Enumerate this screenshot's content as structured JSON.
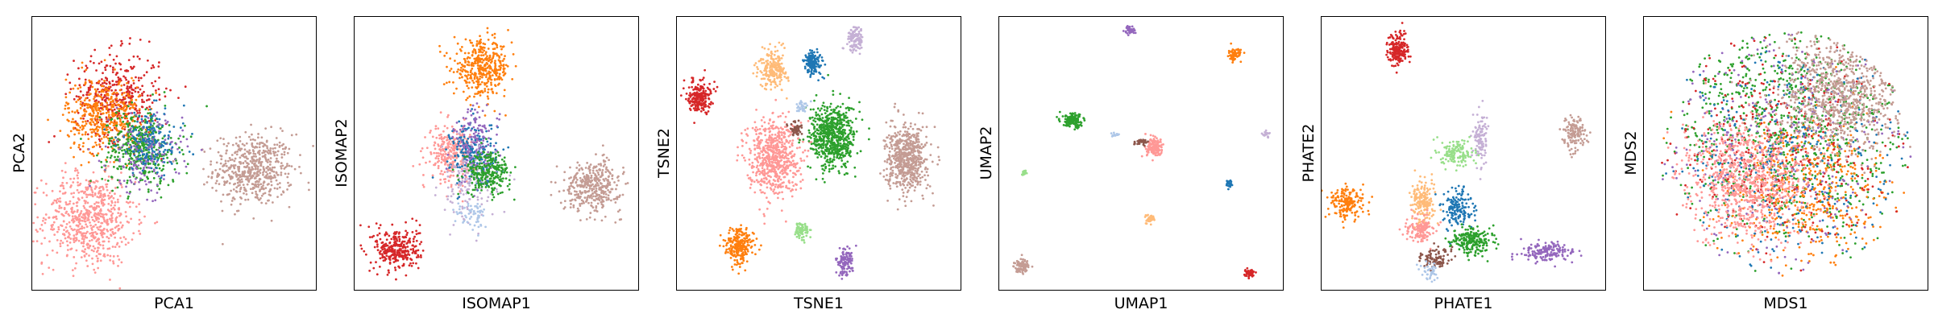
{
  "palette": {
    "c0": "#1f77b4",
    "c1": "#ff7f0e",
    "c2": "#2ca02c",
    "c3": "#d62728",
    "c4": "#9467bd",
    "c5": "#8c564b",
    "c6": "#ff9896",
    "c7": "#ffbb78",
    "c8": "#98df8a",
    "c9": "#c5b0d5",
    "c10": "#c49c94",
    "c11": "#aec7e8"
  },
  "chart_data": [
    {
      "type": "scatter",
      "xlabel": "PCA1",
      "ylabel": "PCA2",
      "ticks": "none",
      "xlim": [
        0,
        100
      ],
      "ylim": [
        0,
        100
      ],
      "clusters": [
        {
          "color": "c10",
          "cx": 78,
          "cy": 44,
          "sx": 7,
          "sy": 6.5,
          "n": 550
        },
        {
          "color": "c6",
          "cx": 20,
          "cy": 26,
          "sx": 8,
          "sy": 8.5,
          "n": 650
        },
        {
          "color": "c3",
          "cx": 30,
          "cy": 71,
          "sx": 7.5,
          "sy": 8,
          "n": 400
        },
        {
          "color": "c1",
          "cx": 25,
          "cy": 64,
          "sx": 6.5,
          "sy": 7,
          "n": 420
        },
        {
          "color": "c2",
          "cx": 38,
          "cy": 52,
          "sx": 6.5,
          "sy": 7,
          "n": 420
        },
        {
          "color": "c4",
          "cx": 40,
          "cy": 50,
          "sx": 6.5,
          "sy": 7,
          "n": 180
        },
        {
          "color": "c0",
          "cx": 42,
          "cy": 54,
          "sx": 6,
          "sy": 6,
          "n": 150
        }
      ]
    },
    {
      "type": "scatter",
      "xlabel": "ISOMAP1",
      "ylabel": "ISOMAP2",
      "ticks": "none",
      "xlim": [
        0,
        100
      ],
      "ylim": [
        0,
        100
      ],
      "clusters": [
        {
          "color": "c1",
          "cx": 45,
          "cy": 81,
          "sx": 5,
          "sy": 5,
          "n": 400
        },
        {
          "color": "c6",
          "cx": 34,
          "cy": 50,
          "sx": 4,
          "sy": 5,
          "n": 300
        },
        {
          "color": "c0",
          "cx": 42,
          "cy": 50,
          "sx": 4,
          "sy": 6,
          "n": 220
        },
        {
          "color": "c4",
          "cx": 43,
          "cy": 53,
          "sx": 4,
          "sy": 7,
          "n": 160
        },
        {
          "color": "c9",
          "cx": 40,
          "cy": 38,
          "sx": 5,
          "sy": 7,
          "n": 140
        },
        {
          "color": "c2",
          "cx": 47,
          "cy": 43,
          "sx": 4,
          "sy": 4,
          "n": 260
        },
        {
          "color": "c10",
          "cx": 84,
          "cy": 38,
          "sx": 5,
          "sy": 4.5,
          "n": 380
        },
        {
          "color": "c3",
          "cx": 15,
          "cy": 15,
          "sx": 4,
          "sy": 4,
          "n": 300
        },
        {
          "color": "c11",
          "cx": 42,
          "cy": 27,
          "sx": 3,
          "sy": 3,
          "n": 60
        }
      ]
    },
    {
      "type": "scatter",
      "xlabel": "TSNE1",
      "ylabel": "TSNE2",
      "ticks": "none",
      "xlim": [
        0,
        100
      ],
      "ylim": [
        0,
        100
      ],
      "clusters": [
        {
          "color": "c6",
          "cx": 34,
          "cy": 49,
          "sx": 4.5,
          "sy": 7,
          "n": 650
        },
        {
          "color": "c2",
          "cx": 55,
          "cy": 56,
          "sx": 4,
          "sy": 6,
          "n": 650
        },
        {
          "color": "c10",
          "cx": 81,
          "cy": 48,
          "sx": 3.5,
          "sy": 6,
          "n": 600
        },
        {
          "color": "c3",
          "cx": 8,
          "cy": 71,
          "sx": 2,
          "sy": 3,
          "n": 220
        },
        {
          "color": "c7",
          "cx": 34,
          "cy": 81,
          "sx": 2.5,
          "sy": 3.5,
          "n": 220
        },
        {
          "color": "c0",
          "cx": 48,
          "cy": 83,
          "sx": 1.6,
          "sy": 2.2,
          "n": 160
        },
        {
          "color": "c9",
          "cx": 63,
          "cy": 92,
          "sx": 1.4,
          "sy": 2.2,
          "n": 120
        },
        {
          "color": "c1",
          "cx": 22,
          "cy": 16,
          "sx": 2.5,
          "sy": 3.5,
          "n": 240
        },
        {
          "color": "c8",
          "cx": 44,
          "cy": 22,
          "sx": 1.2,
          "sy": 1.6,
          "n": 80
        },
        {
          "color": "c4",
          "cx": 59,
          "cy": 10,
          "sx": 1.5,
          "sy": 2.5,
          "n": 120
        },
        {
          "color": "c5",
          "cx": 42,
          "cy": 59,
          "sx": 1.2,
          "sy": 1.2,
          "n": 50
        },
        {
          "color": "c11",
          "cx": 44,
          "cy": 67,
          "sx": 1,
          "sy": 1.2,
          "n": 30
        }
      ]
    },
    {
      "type": "scatter",
      "xlabel": "UMAP1",
      "ylabel": "UMAP2",
      "ticks": "none",
      "xlim": [
        0,
        100
      ],
      "ylim": [
        0,
        100
      ],
      "clusters": [
        {
          "color": "c4",
          "cx": 46,
          "cy": 95,
          "sx": 1,
          "sy": 0.8,
          "n": 40
        },
        {
          "color": "c1",
          "cx": 83,
          "cy": 86,
          "sx": 1.1,
          "sy": 1.1,
          "n": 70
        },
        {
          "color": "c2",
          "cx": 26,
          "cy": 62,
          "sx": 1.8,
          "sy": 1.3,
          "n": 140
        },
        {
          "color": "c6",
          "cx": 55,
          "cy": 52,
          "sx": 1.6,
          "sy": 1.6,
          "n": 140
        },
        {
          "color": "c5",
          "cx": 50,
          "cy": 54,
          "sx": 1.2,
          "sy": 0.5,
          "n": 40
        },
        {
          "color": "c11",
          "cx": 41,
          "cy": 57,
          "sx": 0.6,
          "sy": 0.4,
          "n": 15
        },
        {
          "color": "c9",
          "cx": 94,
          "cy": 57,
          "sx": 0.7,
          "sy": 0.5,
          "n": 20
        },
        {
          "color": "c8",
          "cx": 9,
          "cy": 43,
          "sx": 0.5,
          "sy": 0.6,
          "n": 15
        },
        {
          "color": "c0",
          "cx": 81,
          "cy": 39,
          "sx": 0.6,
          "sy": 0.7,
          "n": 25
        },
        {
          "color": "c7",
          "cx": 53,
          "cy": 26,
          "sx": 0.9,
          "sy": 0.9,
          "n": 40
        },
        {
          "color": "c10",
          "cx": 8,
          "cy": 9,
          "sx": 1.4,
          "sy": 1.2,
          "n": 90
        },
        {
          "color": "c3",
          "cx": 88,
          "cy": 6,
          "sx": 0.9,
          "sy": 0.8,
          "n": 40
        }
      ]
    },
    {
      "type": "scatter",
      "xlabel": "PHATE1",
      "ylabel": "PHATE2",
      "ticks": "none",
      "xlim": [
        0,
        100
      ],
      "ylim": [
        0,
        100
      ],
      "clusters": [
        {
          "color": "c3",
          "cx": 27,
          "cy": 88,
          "sx": 1.8,
          "sy": 3,
          "n": 200
        },
        {
          "color": "c10",
          "cx": 89,
          "cy": 57,
          "sx": 2,
          "sy": 3,
          "n": 140
        },
        {
          "color": "c9",
          "cx": 56,
          "cy": 56,
          "sx": 1.2,
          "sy": 5,
          "n": 110
        },
        {
          "color": "c8",
          "cx": 48,
          "cy": 50,
          "sx": 3,
          "sy": 2.5,
          "n": 140
        },
        {
          "color": "c1",
          "cx": 9,
          "cy": 32,
          "sx": 3,
          "sy": 3,
          "n": 180
        },
        {
          "color": "c7",
          "cx": 36,
          "cy": 32,
          "sx": 2,
          "sy": 4,
          "n": 180
        },
        {
          "color": "c0",
          "cx": 48,
          "cy": 30,
          "sx": 2.5,
          "sy": 3.5,
          "n": 160
        },
        {
          "color": "c6",
          "cx": 35,
          "cy": 22,
          "sx": 2.5,
          "sy": 2.5,
          "n": 130
        },
        {
          "color": "c2",
          "cx": 53,
          "cy": 18,
          "sx": 3.5,
          "sy": 2.5,
          "n": 220
        },
        {
          "color": "c4",
          "cx": 80,
          "cy": 14,
          "sx": 5,
          "sy": 1.6,
          "n": 160
        },
        {
          "color": "c5",
          "cx": 40,
          "cy": 11,
          "sx": 2.5,
          "sy": 2,
          "n": 100
        },
        {
          "color": "c11",
          "cx": 38,
          "cy": 7,
          "sx": 2,
          "sy": 2,
          "n": 40
        }
      ]
    },
    {
      "type": "scatter",
      "xlabel": "MDS1",
      "ylabel": "MDS2",
      "ticks": "none",
      "xlim": [
        0,
        100
      ],
      "ylim": [
        0,
        100
      ],
      "clusters": [
        {
          "color": "c2",
          "cx": 50,
          "cy": 60,
          "sx": 22,
          "sy": 20,
          "n": 900,
          "disk": 45
        },
        {
          "color": "c1",
          "cx": 58,
          "cy": 36,
          "sx": 14,
          "sy": 14,
          "n": 500,
          "disk": 45
        },
        {
          "color": "c3",
          "cx": 44,
          "cy": 52,
          "sx": 22,
          "sy": 22,
          "n": 350,
          "disk": 45
        },
        {
          "color": "c4",
          "cx": 50,
          "cy": 50,
          "sx": 24,
          "sy": 24,
          "n": 300,
          "disk": 45
        },
        {
          "color": "c0",
          "cx": 50,
          "cy": 50,
          "sx": 24,
          "sy": 24,
          "n": 300,
          "disk": 45
        },
        {
          "color": "c10",
          "cx": 70,
          "cy": 72,
          "sx": 11,
          "sy": 10,
          "n": 800,
          "disk": 45
        },
        {
          "color": "c6",
          "cx": 36,
          "cy": 40,
          "sx": 11,
          "sy": 11,
          "n": 850,
          "disk": 45
        }
      ]
    }
  ]
}
